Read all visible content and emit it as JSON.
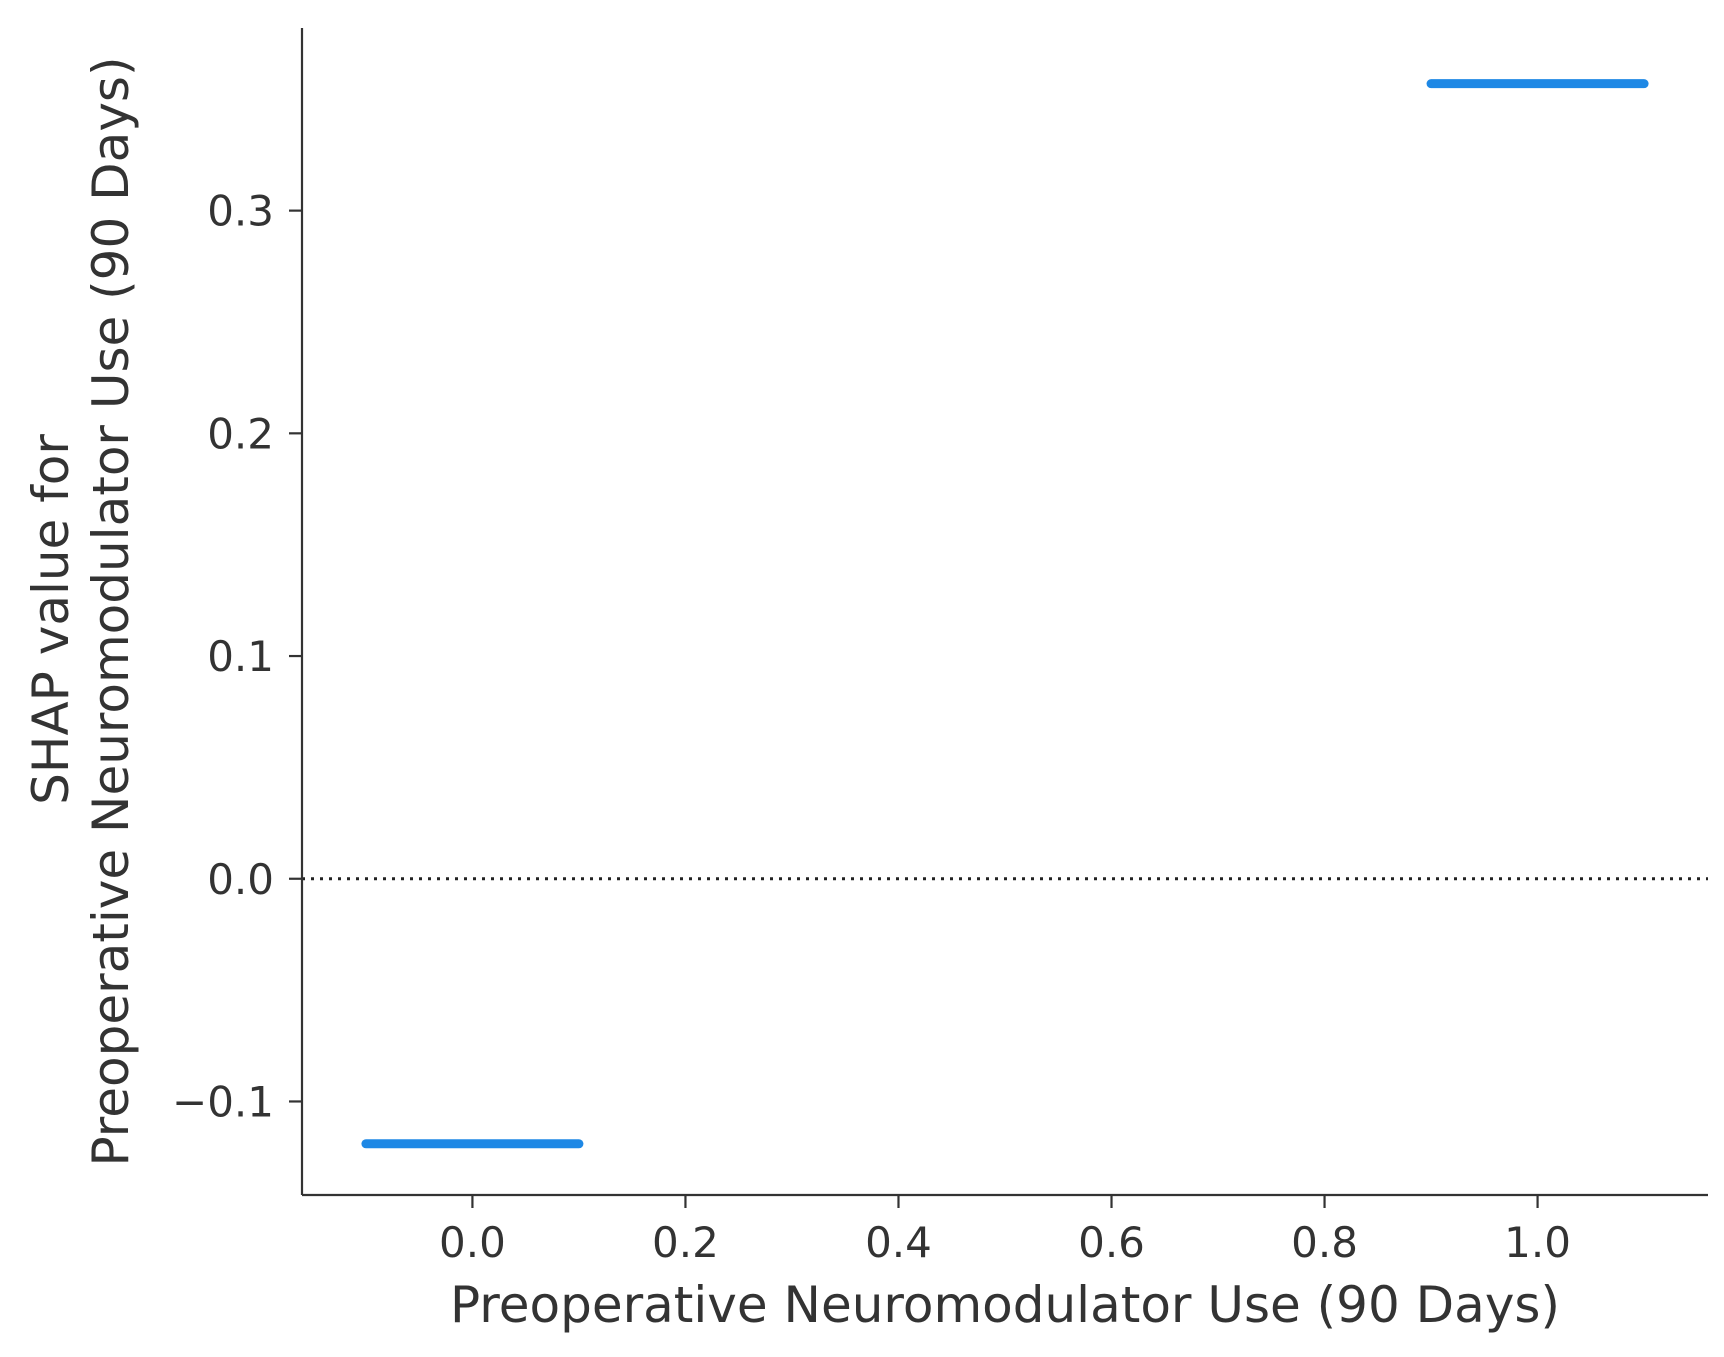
{
  "chart_data": {
    "type": "line",
    "title": "",
    "xlabel": "Preoperative Neuromodulator Use (90 Days)",
    "ylabel_lines": [
      "SHAP value for",
      "Preoperative Neuromodulator Use (90 Days)"
    ],
    "xlim": [
      -0.16,
      1.16
    ],
    "ylim": [
      -0.142,
      0.382
    ],
    "x_ticks": [
      {
        "value": 0.0,
        "label": "0.0"
      },
      {
        "value": 0.2,
        "label": "0.2"
      },
      {
        "value": 0.4,
        "label": "0.4"
      },
      {
        "value": 0.6,
        "label": "0.6"
      },
      {
        "value": 0.8,
        "label": "0.8"
      },
      {
        "value": 1.0,
        "label": "1.0"
      }
    ],
    "y_ticks": [
      {
        "value": -0.1,
        "label": "−0.1"
      },
      {
        "value": 0.0,
        "label": "0.0"
      },
      {
        "value": 0.1,
        "label": "0.1"
      },
      {
        "value": 0.2,
        "label": "0.2"
      },
      {
        "value": 0.3,
        "label": "0.3"
      }
    ],
    "reference_line": {
      "y": 0.0,
      "style": "dotted"
    },
    "series_color": "#1e88e5",
    "segments": [
      {
        "x": [
          -0.1,
          0.1
        ],
        "y": [
          -0.119,
          -0.119
        ]
      },
      {
        "x": [
          0.9,
          1.1
        ],
        "y": [
          0.357,
          0.357
        ]
      }
    ],
    "grid": false,
    "legend": "none"
  }
}
